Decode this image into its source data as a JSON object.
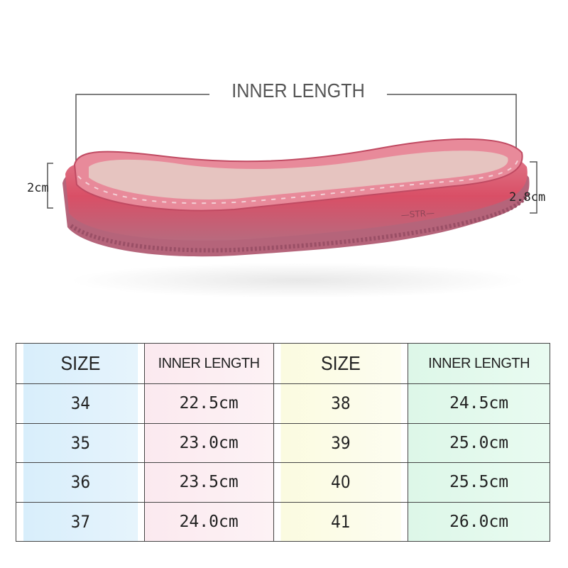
{
  "diagram": {
    "title": "INNER LENGTH",
    "heel_height": "2cm",
    "toe_height": "2.8cm",
    "sole_color": "#d9506a"
  },
  "table": {
    "headers": [
      "SIZE",
      "INNER LENGTH",
      "SIZE",
      "INNER LENGTH"
    ],
    "rows": [
      [
        "34",
        "22.5cm",
        "38",
        "24.5cm"
      ],
      [
        "35",
        "23.0cm",
        "39",
        "25.0cm"
      ],
      [
        "36",
        "23.5cm",
        "40",
        "25.5cm"
      ],
      [
        "37",
        "24.0cm",
        "41",
        "26.0cm"
      ]
    ],
    "column_colors": [
      "#d8eefb",
      "#fbe9ef",
      "#fbfbe0",
      "#ddf7e8"
    ]
  }
}
